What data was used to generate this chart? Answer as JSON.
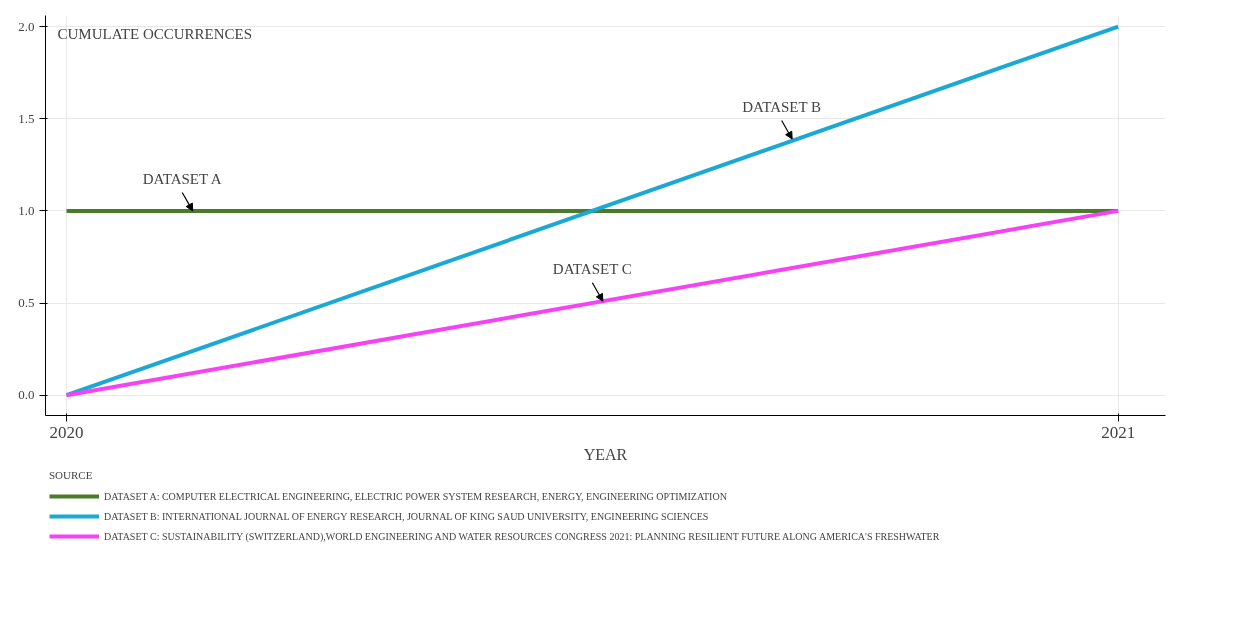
{
  "chart_data": {
    "type": "line",
    "ylabel": "CUMULATE OCCURRENCES",
    "xlabel": "YEAR",
    "legend_title": "SOURCE",
    "x": [
      2020,
      2021
    ],
    "series": [
      {
        "name": "DATASET A: COMPUTER ELECTRICAL ENGINEERING, ELECTRIC POWER SYSTEM RESEARCH, ENERGY, ENGINEERING OPTIMIZATION",
        "color": "#4a7a2a",
        "values": [
          1,
          1
        ]
      },
      {
        "name": "DATASET B: INTERNATIONAL JOURNAL OF ENERGY RESEARCH, JOURNAL OF KING SAUD UNIVERSITY, ENGINEERING SCIENCES",
        "color": "#1ba8d4",
        "values": [
          0,
          2
        ]
      },
      {
        "name": "DATASET C: SUSTAINABILITY (SWITZERLAND),WORLD ENGINEERING AND WATER RESOURCES CONGRESS 2021: PLANNING RESILIENT FUTURE ALONG AMERICA'S FRESHWATER",
        "color": "#f542f5",
        "values": [
          0,
          1
        ]
      }
    ],
    "annotations": [
      {
        "text": "DATASET A",
        "x": 2020.12,
        "y": 1.0
      },
      {
        "text": "DATASET B",
        "x": 2020.69,
        "y": 1.39
      },
      {
        "text": "DATASET C",
        "x": 2020.51,
        "y": 0.51
      }
    ],
    "xlim": [
      2019.98,
      2021.045
    ],
    "xticks": [
      2020,
      2021
    ],
    "ylim": [
      -0.11,
      2.06
    ],
    "yticks": [
      {
        "value": 0,
        "label": "0.0"
      },
      {
        "value": 0.5,
        "label": "0.5"
      },
      {
        "value": 1,
        "label": "1.0"
      },
      {
        "value": 1.5,
        "label": "1.5"
      },
      {
        "value": 2,
        "label": "2.0"
      }
    ],
    "grid": true,
    "legend": "bottom",
    "marker": "none",
    "line_style": "solid"
  }
}
